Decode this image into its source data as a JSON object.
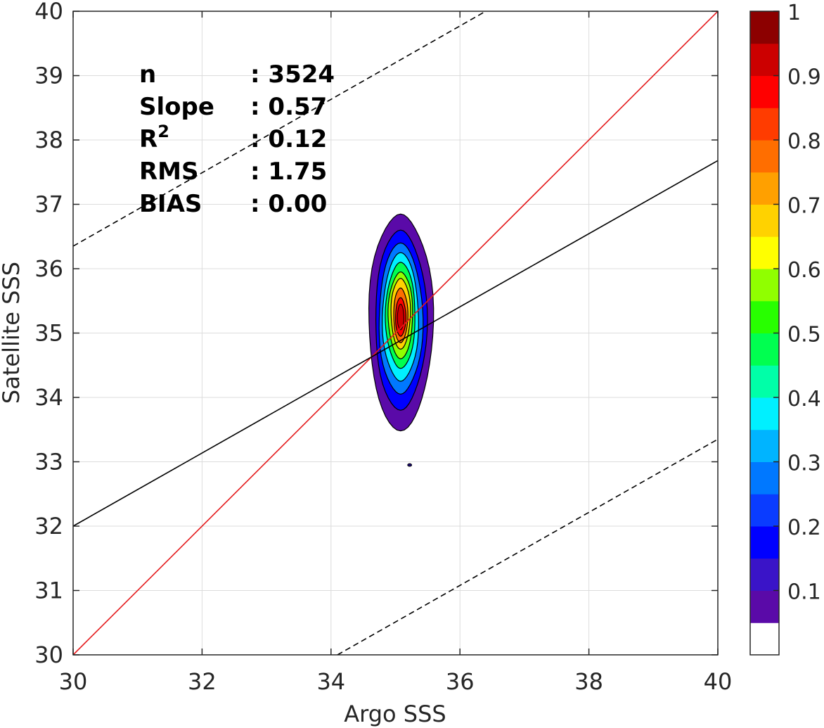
{
  "chart_data": {
    "type": "contour",
    "xlabel": "Argo SSS",
    "ylabel": "Satellite SSS",
    "xlim": [
      30,
      40
    ],
    "ylim": [
      30,
      40
    ],
    "xticks": [
      "30",
      "32",
      "34",
      "36",
      "38",
      "40"
    ],
    "yticks": [
      "30",
      "31",
      "32",
      "33",
      "34",
      "35",
      "36",
      "37",
      "38",
      "39",
      "40"
    ],
    "grid": true,
    "stats": [
      {
        "label": "n",
        "value": ": 3524"
      },
      {
        "label": "Slope",
        "value": ": 0.57"
      },
      {
        "label": "R",
        "sup": "2",
        "value": ": 0.12"
      },
      {
        "label": "RMS",
        "value": ": 1.75"
      },
      {
        "label": "BIAS",
        "value": ": 0.00"
      }
    ],
    "lines": [
      {
        "name": "one-to-one",
        "style": "solid",
        "color": "#e41a1c",
        "x": [
          30,
          40
        ],
        "y": [
          30,
          40
        ]
      },
      {
        "name": "regression-fit",
        "style": "solid",
        "color": "#000000",
        "x": [
          30,
          40
        ],
        "y": [
          32.0,
          37.68
        ]
      },
      {
        "name": "upper-bound",
        "style": "dashed",
        "color": "#000000",
        "x": [
          30,
          36.4
        ],
        "y": [
          36.35,
          40
        ]
      },
      {
        "name": "lower-bound",
        "style": "dashed",
        "color": "#000000",
        "x": [
          34.1,
          40
        ],
        "y": [
          30,
          33.35
        ]
      }
    ],
    "density": {
      "center_x": 35.08,
      "center_y": 35.2,
      "levels": [
        0.1,
        0.2,
        0.3,
        0.4,
        0.5,
        0.6,
        0.7,
        0.8,
        0.9
      ],
      "contours": [
        {
          "level": 0.05,
          "x_half": 0.5,
          "y_top": 36.85,
          "y_bottom": 33.48
        },
        {
          "level": 0.15,
          "x_half": 0.4,
          "y_top": 36.6,
          "y_bottom": 33.8
        },
        {
          "level": 0.25,
          "x_half": 0.34,
          "y_top": 36.4,
          "y_bottom": 34.05
        },
        {
          "level": 0.35,
          "x_half": 0.28,
          "y_top": 36.25,
          "y_bottom": 34.25
        },
        {
          "level": 0.45,
          "x_half": 0.23,
          "y_top": 36.1,
          "y_bottom": 34.45
        },
        {
          "level": 0.55,
          "x_half": 0.19,
          "y_top": 35.95,
          "y_bottom": 34.6
        },
        {
          "level": 0.65,
          "x_half": 0.15,
          "y_top": 35.85,
          "y_bottom": 34.75
        },
        {
          "level": 0.75,
          "x_half": 0.11,
          "y_top": 35.7,
          "y_bottom": 34.85
        },
        {
          "level": 0.85,
          "x_half": 0.08,
          "y_top": 35.55,
          "y_bottom": 34.95
        }
      ],
      "outlier": {
        "x": 35.22,
        "y": 32.95
      }
    },
    "colorbar": {
      "min": 0,
      "max": 1,
      "tick_labels": [
        "0.1",
        "0.2",
        "0.3",
        "0.4",
        "0.5",
        "0.6",
        "0.7",
        "0.8",
        "0.9",
        "1"
      ],
      "tick_values": [
        0.1,
        0.2,
        0.3,
        0.4,
        0.5,
        0.6,
        0.7,
        0.8,
        0.9,
        1.0
      ],
      "colors": [
        "#ffffff",
        "#5a0aa8",
        "#3a14c8",
        "#0000ff",
        "#0a3cff",
        "#0078ff",
        "#00b4ff",
        "#00f0ff",
        "#00ffa8",
        "#00ff50",
        "#28ff00",
        "#90ff00",
        "#ffff00",
        "#ffd200",
        "#ffa000",
        "#ff6e00",
        "#ff3c00",
        "#ff0000",
        "#cc0000",
        "#8c0000"
      ]
    }
  }
}
